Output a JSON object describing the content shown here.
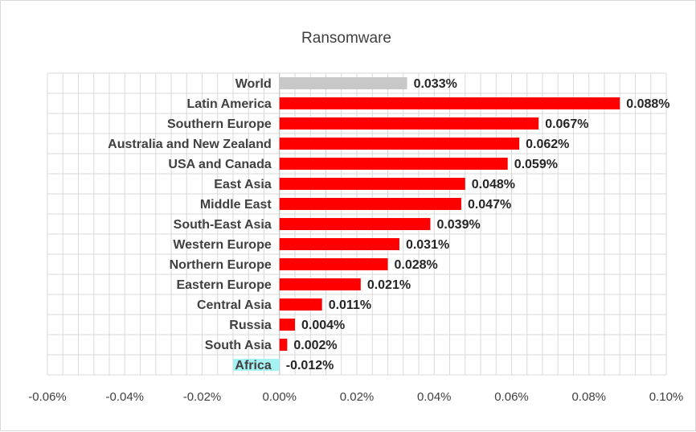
{
  "chart_data": {
    "type": "bar",
    "orientation": "horizontal",
    "title": "Ransomware",
    "xlabel": "",
    "ylabel": "",
    "xlim": [
      -0.06,
      0.1
    ],
    "x_ticks": [
      "-0.06%",
      "-0.04%",
      "-0.02%",
      "0.00%",
      "0.02%",
      "0.04%",
      "0.06%",
      "0.08%",
      "0.10%"
    ],
    "x_tick_values": [
      -0.06,
      -0.04,
      -0.02,
      0.0,
      0.02,
      0.04,
      0.06,
      0.08,
      0.1
    ],
    "grid": true,
    "legend": "none",
    "categories": [
      "World",
      "Latin America",
      "Southern Europe",
      "Australia and New Zealand",
      "USA and Canada",
      "East Asia",
      "Middle East",
      "South-East Asia",
      "Western Europe",
      "Northern Europe",
      "Eastern Europe",
      "Central Asia",
      "Russia",
      "South Asia",
      "Africa"
    ],
    "values": [
      0.033,
      0.088,
      0.067,
      0.062,
      0.059,
      0.048,
      0.047,
      0.039,
      0.031,
      0.028,
      0.021,
      0.011,
      0.004,
      0.002,
      -0.012
    ],
    "value_labels": [
      "0.033%",
      "0.088%",
      "0.067%",
      "0.062%",
      "0.059%",
      "0.048%",
      "0.047%",
      "0.039%",
      "0.031%",
      "0.028%",
      "0.021%",
      "0.011%",
      "0.004%",
      "0.002%",
      "-0.012%"
    ],
    "colors": {
      "default": "#ff0000",
      "World": "#c8c8c8",
      "Africa": "#a6f2f2",
      "grid": "#d9d9d9"
    }
  }
}
